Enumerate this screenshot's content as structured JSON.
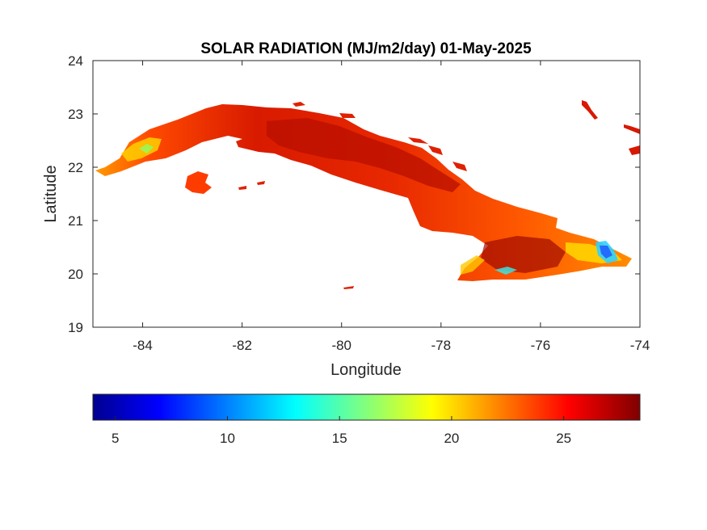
{
  "chart_data": {
    "type": "heatmap",
    "title": "SOLAR RADIATION (MJ/m2/day) 01-May-2025",
    "xlabel": "Longitude",
    "ylabel": "Latitude",
    "xlim": [
      -85,
      -74
    ],
    "ylim": [
      19,
      24
    ],
    "x_ticks": [
      -84,
      -82,
      -80,
      -78,
      -76,
      -74
    ],
    "y_ticks": [
      19,
      20,
      21,
      22,
      23,
      24
    ],
    "x_tick_labels": [
      "-84",
      "-82",
      "-80",
      "-78",
      "-76",
      "-74"
    ],
    "y_tick_labels": [
      "19",
      "20",
      "21",
      "22",
      "23",
      "24"
    ],
    "grid": false,
    "colormap": "jet",
    "colorbar": {
      "orientation": "horizontal",
      "placement": "bottom",
      "range": [
        4,
        28.4
      ],
      "ticks": [
        5,
        10,
        15,
        20,
        25
      ],
      "tick_labels": [
        "5",
        "10",
        "15",
        "20",
        "25"
      ],
      "stops": [
        "#00008f",
        "#0000ff",
        "#00ffff",
        "#ffff00",
        "#ff0000",
        "#800000"
      ]
    },
    "regions": [
      {
        "name": "cuba-main",
        "dominant_color": "#e02000"
      },
      {
        "name": "isla-de-la-juventud",
        "dominant_color": "#ff3000"
      }
    ]
  }
}
